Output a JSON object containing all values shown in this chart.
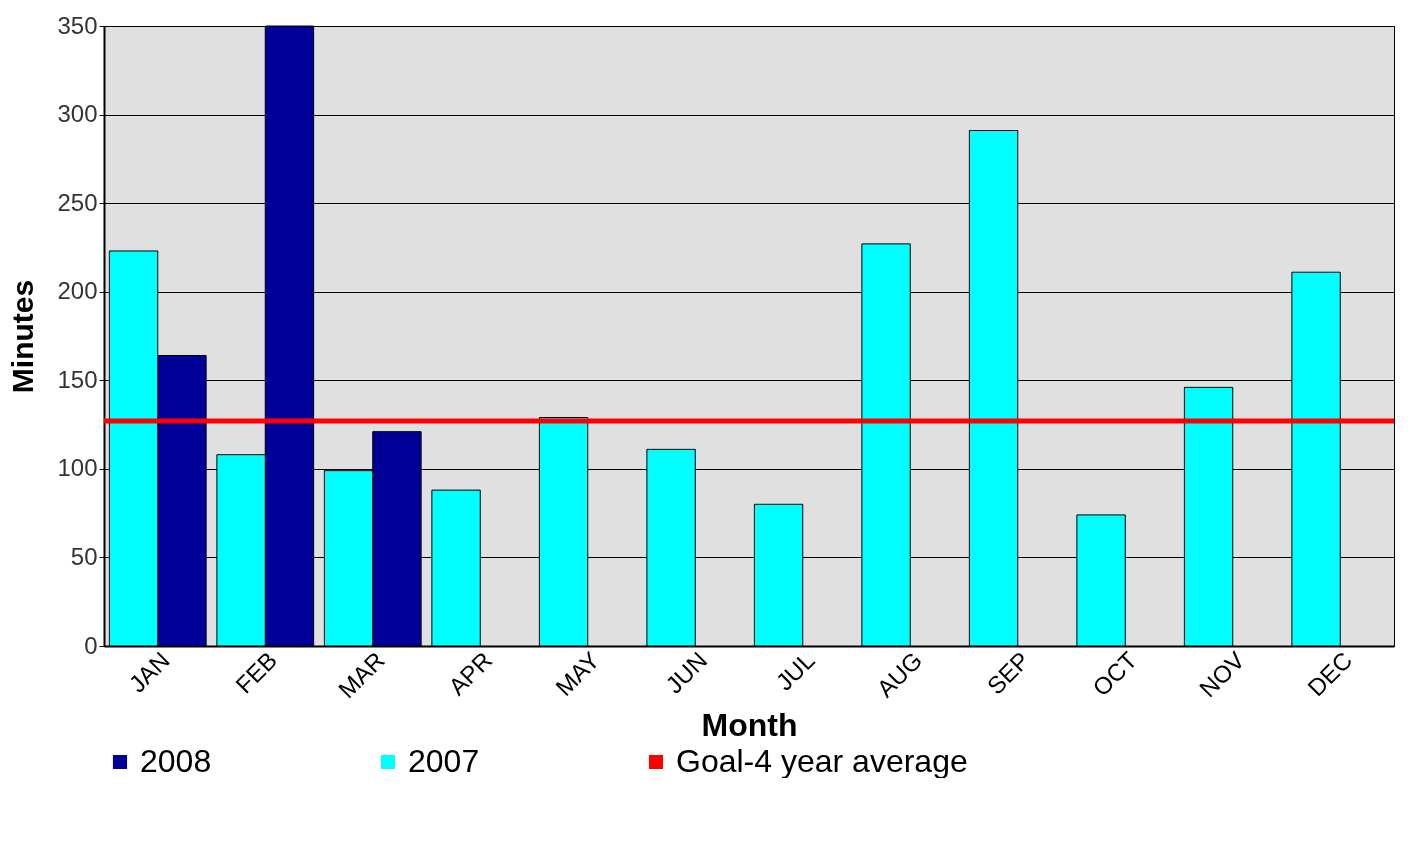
{
  "chart_data": {
    "type": "bar",
    "xlabel": "Month",
    "ylabel": "Minutes",
    "categories": [
      "JAN",
      "FEB",
      "MAR",
      "APR",
      "MAY",
      "JUN",
      "JUL",
      "AUG",
      "SEP",
      "OCT",
      "NOV",
      "DEC"
    ],
    "series": [
      {
        "name": "2008",
        "color": "#000099",
        "values": [
          164,
          350,
          121,
          null,
          null,
          null,
          null,
          null,
          null,
          null,
          null,
          null
        ]
      },
      {
        "name": "2007",
        "color": "#00ffff",
        "values": [
          223,
          108,
          99,
          88,
          129,
          111,
          80,
          227,
          291,
          74,
          146,
          211
        ]
      }
    ],
    "ref_lines": [
      {
        "axis": "y",
        "value": 127,
        "label": "Goal-4 year average",
        "color": "#ff0000"
      }
    ],
    "ylim": [
      0,
      350
    ],
    "yticks": [
      0,
      50,
      100,
      150,
      200,
      250,
      300,
      350
    ],
    "grid": "y",
    "legend": "bottom"
  }
}
